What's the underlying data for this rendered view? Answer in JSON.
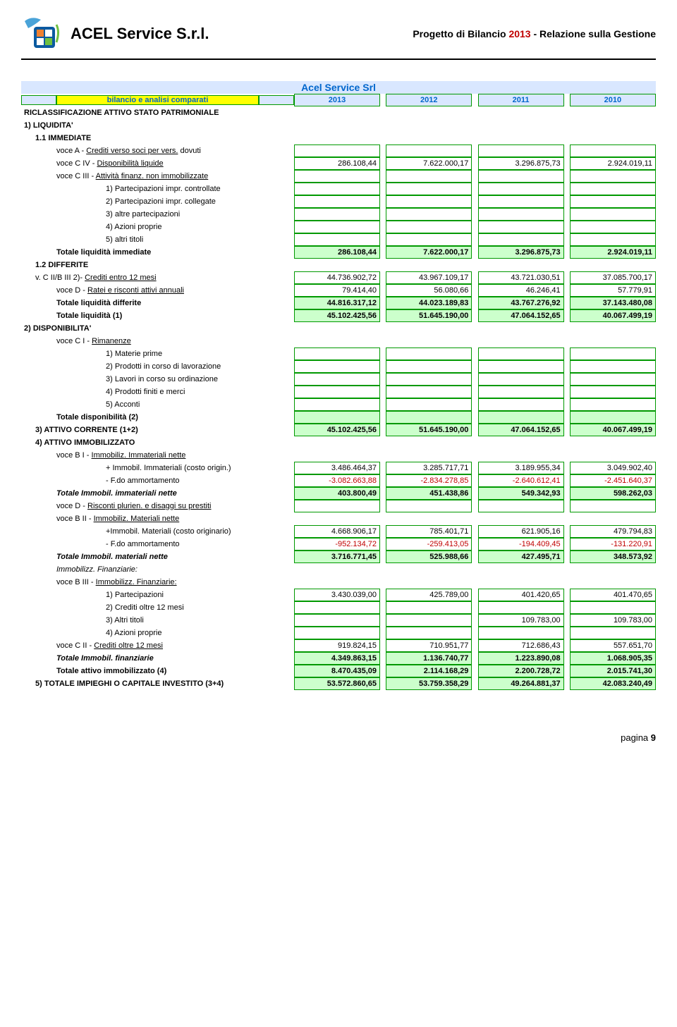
{
  "header": {
    "company": "ACEL Service S.r.l.",
    "doc_title_pre": "Progetto di Bilancio ",
    "doc_title_year": "2013",
    "doc_title_post": " - Relazione sulla Gestione"
  },
  "table": {
    "main_title": "Acel Service Srl",
    "bilancio_label": "bilancio e analisi comparati",
    "years": [
      "2013",
      "2012",
      "2011",
      "2010"
    ]
  },
  "rows": [
    {
      "type": "heading",
      "label": "RICLASSIFICAZIONE ATTIVO STATO PATRIMONIALE"
    },
    {
      "type": "heading",
      "label": "1) LIQUIDITA'"
    },
    {
      "type": "heading",
      "label": "1.1 IMMEDIATE",
      "indent": "indent-1"
    },
    {
      "type": "line",
      "indent": "indent-2",
      "pre": "voce A - ",
      "u": "Crediti verso soci per vers.",
      "post": " dovuti",
      "cells": [
        "",
        "",
        "",
        ""
      ],
      "style": "cell-border"
    },
    {
      "type": "line",
      "indent": "indent-2",
      "pre": "voce C IV - ",
      "u": "Disponibilità liquide",
      "cells": [
        "286.108,44",
        "7.622.000,17",
        "3.296.875,73",
        "2.924.019,11"
      ],
      "style": "cell-border"
    },
    {
      "type": "line",
      "indent": "indent-2",
      "pre": "voce C III - ",
      "u": "Attività finanz. non immobilizzate",
      "cells": [
        "",
        "",
        "",
        ""
      ],
      "style": "cell-border"
    },
    {
      "type": "line",
      "indent": "indent-4",
      "label": "1) Partecipazioni impr. controllate",
      "cells": [
        "",
        "",
        "",
        ""
      ],
      "style": "cell-border"
    },
    {
      "type": "line",
      "indent": "indent-4",
      "label": "2) Partecipazioni impr. collegate",
      "cells": [
        "",
        "",
        "",
        ""
      ],
      "style": "cell-border"
    },
    {
      "type": "line",
      "indent": "indent-4",
      "label": "3) altre partecipazioni",
      "cells": [
        "",
        "",
        "",
        ""
      ],
      "style": "cell-border"
    },
    {
      "type": "line",
      "indent": "indent-4",
      "label": "4) Azioni proprie",
      "cells": [
        "",
        "",
        "",
        ""
      ],
      "style": "cell-border"
    },
    {
      "type": "line",
      "indent": "indent-4",
      "label": "5) altri titoli",
      "cells": [
        "",
        "",
        "",
        ""
      ],
      "style": "cell-border"
    },
    {
      "type": "total",
      "indent": "indent-2",
      "label": "Totale liquidità immediate",
      "cells": [
        "286.108,44",
        "7.622.000,17",
        "3.296.875,73",
        "2.924.019,11"
      ],
      "style": "cell-green",
      "bold": true
    },
    {
      "type": "heading",
      "label": "1.2 DIFFERITE",
      "indent": "indent-1"
    },
    {
      "type": "line",
      "indent": "indent-1",
      "pre": "v. C II/B III 2)- ",
      "u": "Crediti entro 12 mesi",
      "cells": [
        "44.736.902,72",
        "43.967.109,17",
        "43.721.030,51",
        "37.085.700,17"
      ],
      "style": "cell-border"
    },
    {
      "type": "line",
      "indent": "indent-2",
      "pre": "voce D - ",
      "u": "Ratei e risconti attivi annuali",
      "cells": [
        "79.414,40",
        "56.080,66",
        "46.246,41",
        "57.779,91"
      ],
      "style": "cell-border"
    },
    {
      "type": "total",
      "indent": "indent-2",
      "label": "Totale liquidità differite",
      "cells": [
        "44.816.317,12",
        "44.023.189,83",
        "43.767.276,92",
        "37.143.480,08"
      ],
      "style": "cell-green",
      "bold": true
    },
    {
      "type": "total",
      "indent": "indent-2",
      "label": "Totale liquidità (1)",
      "cells": [
        "45.102.425,56",
        "51.645.190,00",
        "47.064.152,65",
        "40.067.499,19"
      ],
      "style": "cell-green",
      "bold": true
    },
    {
      "type": "heading",
      "label": "2) DISPONIBILITA'"
    },
    {
      "type": "line",
      "indent": "indent-2",
      "pre": "voce C I - ",
      "u": "Rimanenze"
    },
    {
      "type": "line",
      "indent": "indent-4",
      "label": "1) Materie prime",
      "cells": [
        "",
        "",
        "",
        ""
      ],
      "style": "cell-border"
    },
    {
      "type": "line",
      "indent": "indent-4",
      "label": "2) Prodotti in corso di lavorazione",
      "cells": [
        "",
        "",
        "",
        ""
      ],
      "style": "cell-border"
    },
    {
      "type": "line",
      "indent": "indent-4",
      "label": "3) Lavori in corso su ordinazione",
      "cells": [
        "",
        "",
        "",
        ""
      ],
      "style": "cell-border"
    },
    {
      "type": "line",
      "indent": "indent-4",
      "label": "4) Prodotti finiti e merci",
      "cells": [
        "",
        "",
        "",
        ""
      ],
      "style": "cell-border"
    },
    {
      "type": "line",
      "indent": "indent-4",
      "label": "5) Acconti",
      "cells": [
        "",
        "",
        "",
        ""
      ],
      "style": "cell-border"
    },
    {
      "type": "total",
      "indent": "indent-2",
      "label": "Totale disponibilità (2)",
      "cells": [
        "",
        "",
        "",
        ""
      ],
      "style": "cell-green",
      "bold": true
    },
    {
      "type": "total",
      "indent": "indent-1",
      "label": "3) ATTIVO CORRENTE (1+2)",
      "cells": [
        "45.102.425,56",
        "51.645.190,00",
        "47.064.152,65",
        "40.067.499,19"
      ],
      "style": "cell-green",
      "bold": true
    },
    {
      "type": "heading",
      "indent": "indent-1",
      "label": "4) ATTIVO IMMOBILIZZATO"
    },
    {
      "type": "line",
      "indent": "indent-2",
      "pre": "voce B I - ",
      "u": "Immobiliz. Immateriali nette"
    },
    {
      "type": "line",
      "indent": "indent-4",
      "label": "+ Immobil. Immateriali (costo origin.)",
      "cells": [
        "3.486.464,37",
        "3.285.717,71",
        "3.189.955,34",
        "3.049.902,40"
      ],
      "style": "cell-border"
    },
    {
      "type": "line",
      "indent": "indent-4",
      "label": "- F.do ammortamento",
      "cells": [
        "-3.082.663,88",
        "-2.834.278,85",
        "-2.640.612,41",
        "-2.451.640,37"
      ],
      "style": "cell-border",
      "neg": true
    },
    {
      "type": "total",
      "indent": "indent-2",
      "label": "Totale Immobil. immateriali nette",
      "italic": true,
      "cells": [
        "403.800,49",
        "451.438,86",
        "549.342,93",
        "598.262,03"
      ],
      "style": "cell-green",
      "bold": true
    },
    {
      "type": "line",
      "indent": "indent-2",
      "pre": "voce D - ",
      "u": "Risconti plurien. e disaggi su prestiti",
      "cells": [
        "",
        "",
        "",
        ""
      ],
      "style": "cell-border"
    },
    {
      "type": "line",
      "indent": "indent-2",
      "pre": "voce B II - ",
      "u": "Immobiliz. Materiali nette"
    },
    {
      "type": "line",
      "indent": "indent-4",
      "label": "+Immobil. Materiali (costo originario)",
      "cells": [
        "4.668.906,17",
        "785.401,71",
        "621.905,16",
        "479.794,83"
      ],
      "style": "cell-border"
    },
    {
      "type": "line",
      "indent": "indent-4",
      "label": "- F.do ammortamento",
      "cells": [
        "-952.134,72",
        "-259.413,05",
        "-194.409,45",
        "-131.220,91"
      ],
      "style": "cell-border",
      "neg": true
    },
    {
      "type": "total",
      "indent": "indent-2",
      "label": "Totale Immobil. materiali nette",
      "italic": true,
      "cells": [
        "3.716.771,45",
        "525.988,66",
        "427.495,71",
        "348.573,92"
      ],
      "style": "cell-green",
      "bold": true
    },
    {
      "type": "line",
      "indent": "indent-2",
      "label": "Immobilizz. Finanziarie:",
      "italic": true
    },
    {
      "type": "line",
      "indent": "indent-2",
      "pre": "voce B III - ",
      "u": "Immobilizz. Finanziarie:"
    },
    {
      "type": "line",
      "indent": "indent-4",
      "label": "1) Partecipazioni",
      "cells": [
        "3.430.039,00",
        "425.789,00",
        "401.420,65",
        "401.470,65"
      ],
      "style": "cell-border"
    },
    {
      "type": "line",
      "indent": "indent-4",
      "label": "2) Crediti oltre 12 mesi",
      "cells": [
        "",
        "",
        "",
        ""
      ],
      "style": "cell-border"
    },
    {
      "type": "line",
      "indent": "indent-4",
      "label": "3) Altri titoli",
      "cells": [
        "",
        "",
        "109.783,00",
        "109.783,00"
      ],
      "style": "cell-border"
    },
    {
      "type": "line",
      "indent": "indent-4",
      "label": "4) Azioni proprie",
      "cells": [
        "",
        "",
        "",
        ""
      ],
      "style": "cell-border"
    },
    {
      "type": "line",
      "indent": "indent-2",
      "pre": "voce C II - ",
      "u": "Crediti oltre 12 mesi",
      "cells": [
        "919.824,15",
        "710.951,77",
        "712.686,43",
        "557.651,70"
      ],
      "style": "cell-border"
    },
    {
      "type": "total",
      "indent": "indent-2",
      "label": "Totale Immobil. finanziarie",
      "italic": true,
      "cells": [
        "4.349.863,15",
        "1.136.740,77",
        "1.223.890,08",
        "1.068.905,35"
      ],
      "style": "cell-green",
      "bold": true
    },
    {
      "type": "total",
      "indent": "indent-2",
      "label": "Totale attivo immobilizzato (4)",
      "cells": [
        "8.470.435,09",
        "2.114.168,29",
        "2.200.728,72",
        "2.015.741,30"
      ],
      "style": "cell-green",
      "bold": true
    },
    {
      "type": "total",
      "indent": "indent-1",
      "label": "5) TOTALE IMPIEGHI O CAPITALE INVESTITO (3+4)",
      "cells": [
        "53.572.860,65",
        "53.759.358,29",
        "49.264.881,37",
        "42.083.240,49"
      ],
      "style": "cell-green",
      "bold": true
    }
  ],
  "footer": {
    "label": "pagina ",
    "num": "9"
  }
}
